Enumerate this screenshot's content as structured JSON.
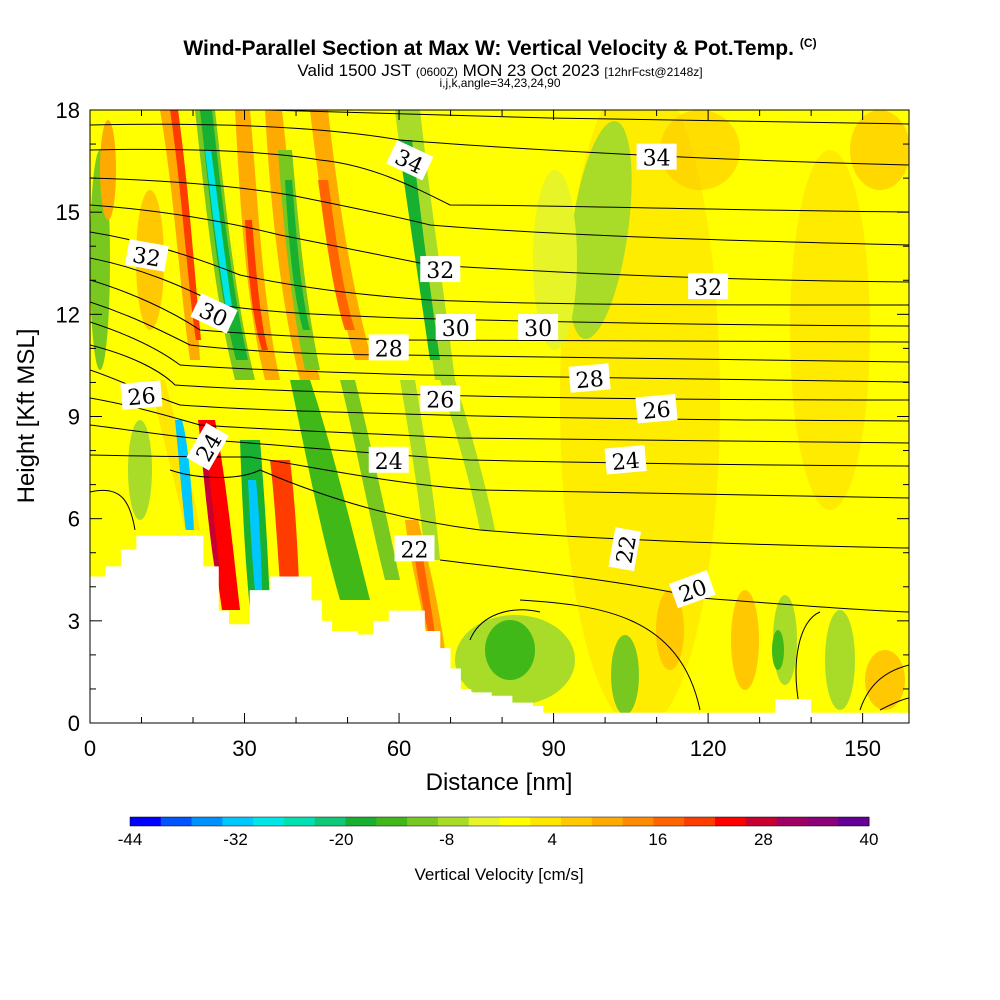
{
  "header": {
    "title": "Wind-Parallel Section at Max W: Vertical Velocity & Pot.Temp.",
    "title_tag": "(C)",
    "valid_prefix": "Valid 1500 JST",
    "valid_utc": "(0600Z)",
    "valid_date": "MON 23 Oct 2023",
    "forecast": "[12hrFcst@2148z]",
    "params": "i,j,k,angle=34,23,24,90"
  },
  "chart_data": {
    "type": "heatmap",
    "xlabel": "Distance [nm]",
    "ylabel": "Height [Kft MSL]",
    "xlim": [
      0,
      159
    ],
    "ylim": [
      0,
      18
    ],
    "x_ticks": [
      0,
      30,
      60,
      90,
      120,
      150
    ],
    "y_ticks": [
      0,
      3,
      6,
      9,
      12,
      15,
      18
    ],
    "grid": false,
    "colorbar": {
      "label": "Vertical Velocity [cm/s]",
      "labeled_ticks": [
        -44,
        -32,
        -20,
        -8,
        4,
        16,
        28,
        40
      ],
      "colors": [
        "#0000ff",
        "#0055ff",
        "#0090ff",
        "#00c8ff",
        "#00e6e6",
        "#00e0b0",
        "#10c878",
        "#18b030",
        "#40b818",
        "#78c820",
        "#a8dc28",
        "#e6f428",
        "#ffff00",
        "#ffe600",
        "#ffc800",
        "#ffaa00",
        "#ff8c00",
        "#ff6400",
        "#ff3c00",
        "#ff0000",
        "#c80032",
        "#a00064",
        "#8c0078",
        "#640096"
      ]
    },
    "theta_contours": {
      "unit": "C",
      "labels": [
        {
          "value": "34",
          "x": 62,
          "y": 16.5
        },
        {
          "value": "34",
          "x": 110,
          "y": 16.6
        },
        {
          "value": "32",
          "x": 11,
          "y": 13.7
        },
        {
          "value": "32",
          "x": 68,
          "y": 13.3
        },
        {
          "value": "32",
          "x": 120,
          "y": 12.8
        },
        {
          "value": "30",
          "x": 24,
          "y": 12.0
        },
        {
          "value": "30",
          "x": 71,
          "y": 11.6
        },
        {
          "value": "30",
          "x": 87,
          "y": 11.6
        },
        {
          "value": "28",
          "x": 58,
          "y": 11.0
        },
        {
          "value": "28",
          "x": 97,
          "y": 10.1
        },
        {
          "value": "26",
          "x": 10,
          "y": 9.6
        },
        {
          "value": "26",
          "x": 68,
          "y": 9.5
        },
        {
          "value": "26",
          "x": 110,
          "y": 9.2
        },
        {
          "value": "24",
          "x": 23,
          "y": 8.1
        },
        {
          "value": "24",
          "x": 58,
          "y": 7.7
        },
        {
          "value": "24",
          "x": 104,
          "y": 7.7
        },
        {
          "value": "22",
          "x": 63,
          "y": 5.1
        },
        {
          "value": "22",
          "x": 104,
          "y": 5.1
        },
        {
          "value": "20",
          "x": 117,
          "y": 3.9
        }
      ]
    },
    "terrain_top_kft": [
      [
        0,
        4.3
      ],
      [
        3,
        4.6
      ],
      [
        6,
        5.1
      ],
      [
        9,
        5.5
      ],
      [
        22,
        4.6
      ],
      [
        25,
        3.3
      ],
      [
        27,
        2.9
      ],
      [
        31,
        3.9
      ],
      [
        35,
        4.3
      ],
      [
        43,
        3.6
      ],
      [
        45,
        3.0
      ],
      [
        47,
        2.7
      ],
      [
        52,
        2.6
      ],
      [
        55,
        3.0
      ],
      [
        58,
        3.3
      ],
      [
        65,
        2.7
      ],
      [
        68,
        2.2
      ],
      [
        70,
        1.6
      ],
      [
        72,
        1.0
      ],
      [
        74,
        0.9
      ],
      [
        78,
        0.8
      ],
      [
        82,
        0.6
      ],
      [
        86,
        0.5
      ],
      [
        88,
        0.3
      ],
      [
        130,
        0.3
      ],
      [
        133,
        0.7
      ],
      [
        140,
        0.3
      ],
      [
        159,
        0.3
      ]
    ]
  }
}
